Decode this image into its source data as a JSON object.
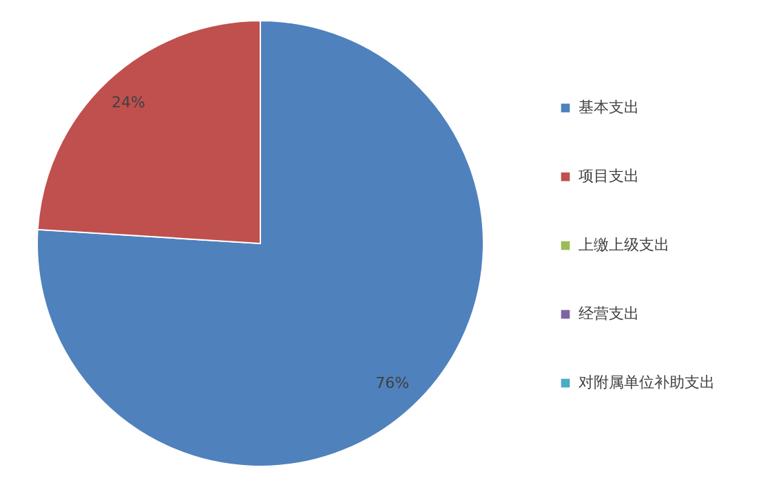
{
  "chart_data": {
    "type": "pie",
    "categories": [
      "基本支出",
      "项目支出",
      "上缴上级支出",
      "经营支出",
      "对附属单位补助支出"
    ],
    "values": [
      76,
      24,
      0,
      0,
      0
    ],
    "colors": [
      "#4f81bd",
      "#c0504d",
      "#9bbb59",
      "#8064a2",
      "#4bacc6"
    ],
    "value_labels": [
      "76%",
      "24%",
      null,
      null,
      null
    ],
    "legend": "right"
  }
}
